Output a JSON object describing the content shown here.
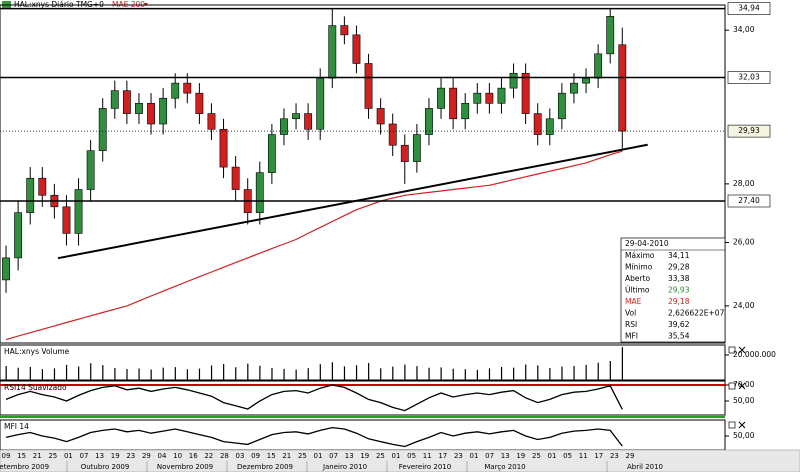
{
  "header": {
    "title": "HAL:xnys Diário TMG+0",
    "indicator": "MAE 200"
  },
  "chart_data": [
    {
      "type": "candlestick",
      "open": [
        24.8,
        25.5,
        27.0,
        28.2,
        27.6,
        27.2,
        26.3,
        27.8,
        29.2,
        30.8,
        31.5,
        30.6,
        31.0,
        30.2,
        31.2,
        31.8,
        31.4,
        30.6,
        30.0,
        28.6,
        27.8,
        27.0,
        28.4,
        29.8,
        30.4,
        30.6,
        30.0,
        32.0,
        34.2,
        33.8,
        32.6,
        30.8,
        30.2,
        29.4,
        28.8,
        29.8,
        30.8,
        31.6,
        30.4,
        31.0,
        31.4,
        31.0,
        31.6,
        32.2,
        30.6,
        29.8,
        30.4,
        31.4,
        31.8,
        32.0,
        33.0,
        33.38
      ],
      "high": [
        25.9,
        27.4,
        28.6,
        28.6,
        28.0,
        27.6,
        28.2,
        29.6,
        31.2,
        31.9,
        31.9,
        31.4,
        31.4,
        31.6,
        32.2,
        32.2,
        31.8,
        31.0,
        30.4,
        29.0,
        28.2,
        28.8,
        30.2,
        30.8,
        31.0,
        31.0,
        32.4,
        34.94,
        34.6,
        34.2,
        33.0,
        31.2,
        30.6,
        29.8,
        30.2,
        31.2,
        32.0,
        32.0,
        31.4,
        31.8,
        31.8,
        32.0,
        32.6,
        32.6,
        31.0,
        30.8,
        31.8,
        32.2,
        32.4,
        33.4,
        34.94,
        34.11
      ],
      "low": [
        24.4,
        25.1,
        26.6,
        27.2,
        26.8,
        25.9,
        25.9,
        27.4,
        28.8,
        30.4,
        30.2,
        30.2,
        29.8,
        29.8,
        30.8,
        31.0,
        30.2,
        29.6,
        28.2,
        27.4,
        26.6,
        26.6,
        28.0,
        29.4,
        30.0,
        29.6,
        29.6,
        31.6,
        33.4,
        32.2,
        30.4,
        29.8,
        29.0,
        28.0,
        28.4,
        29.4,
        30.4,
        30.0,
        30.0,
        30.6,
        30.6,
        30.6,
        31.2,
        30.2,
        29.4,
        29.4,
        30.0,
        31.0,
        31.4,
        31.6,
        32.6,
        29.28
      ],
      "close": [
        25.5,
        27.0,
        28.2,
        27.6,
        27.2,
        26.3,
        27.8,
        29.2,
        30.8,
        31.5,
        30.6,
        31.0,
        30.2,
        31.2,
        31.8,
        31.4,
        30.6,
        30.0,
        28.6,
        27.8,
        27.0,
        28.4,
        29.8,
        30.4,
        30.6,
        30.0,
        32.0,
        34.2,
        33.8,
        32.6,
        30.8,
        30.2,
        29.4,
        28.8,
        29.8,
        30.8,
        31.6,
        30.4,
        31.0,
        31.4,
        31.0,
        31.6,
        32.2,
        30.6,
        29.8,
        30.4,
        31.4,
        31.8,
        32.0,
        33.0,
        34.6,
        29.93
      ],
      "up_color": "#2f8f3f",
      "down_color": "#d02020",
      "overlay": {
        "name": "MAE 200",
        "color": "#cc2222",
        "values": [
          23.0,
          23.1,
          23.2,
          23.3,
          23.4,
          23.5,
          23.6,
          23.7,
          23.8,
          23.9,
          24.0,
          24.15,
          24.3,
          24.45,
          24.6,
          24.75,
          24.9,
          25.05,
          25.2,
          25.35,
          25.5,
          25.65,
          25.8,
          25.95,
          26.1,
          26.3,
          26.5,
          26.7,
          26.9,
          27.1,
          27.25,
          27.4,
          27.5,
          27.6,
          27.65,
          27.7,
          27.75,
          27.8,
          27.85,
          27.9,
          27.95,
          28.05,
          28.15,
          28.25,
          28.35,
          28.45,
          28.55,
          28.65,
          28.75,
          28.9,
          29.05,
          29.18
        ]
      },
      "trendline": {
        "x": [
          4.3,
          53.1
        ],
        "y": [
          25.49,
          29.42
        ],
        "color": "#000000"
      },
      "levels": [
        {
          "value": 34.94,
          "label": "34,94"
        },
        {
          "value": 32.03,
          "label": "32,03"
        },
        {
          "value": 29.93,
          "label": "29,93",
          "style": "dotted"
        },
        {
          "value": 27.4,
          "label": "27,40"
        }
      ],
      "xlim": [
        -0.5,
        59.5
      ],
      "ylim": [
        22.9,
        35.1
      ],
      "log_scale": true,
      "yticks": [
        {
          "value": 24,
          "label": "24,00"
        },
        {
          "value": 26,
          "label": "26,00"
        },
        {
          "value": 28,
          "label": "28,00"
        },
        {
          "value": 34,
          "label": "34,00"
        }
      ]
    },
    {
      "type": "bar",
      "title": "HAL:xnys Volume",
      "color": "#000000",
      "values": [
        11200000,
        9800000,
        10500000,
        8700000,
        9300000,
        12100000,
        10800000,
        13400000,
        11900000,
        9600000,
        8800000,
        9200000,
        8400000,
        9900000,
        10300000,
        8600000,
        9100000,
        11600000,
        12800000,
        10200000,
        13100000,
        11400000,
        9700000,
        8900000,
        8300000,
        9500000,
        12600000,
        14200000,
        10900000,
        11800000,
        13600000,
        9400000,
        10700000,
        12300000,
        11100000,
        9800000,
        10100000,
        9000000,
        8600000,
        8100000,
        9300000,
        10400000,
        9900000,
        12400000,
        11700000,
        9600000,
        10800000,
        11300000,
        12100000,
        13800000,
        15200000,
        26266220
      ],
      "ylim": [
        0,
        26400000
      ],
      "yticks": [
        {
          "value": 20000000,
          "label": "20.000.000"
        }
      ]
    },
    {
      "type": "line",
      "title": "RSI14 Suavizado",
      "color": "#000000",
      "values": [
        52,
        58,
        62,
        58,
        55,
        50,
        57,
        63,
        67,
        69,
        64,
        66,
        62,
        65,
        67,
        64,
        60,
        56,
        48,
        44,
        40,
        50,
        58,
        62,
        63,
        60,
        66,
        70,
        67,
        60,
        52,
        48,
        42,
        38,
        46,
        54,
        60,
        55,
        58,
        60,
        58,
        61,
        63,
        54,
        48,
        52,
        58,
        61,
        62,
        65,
        69,
        39.62
      ],
      "level_line": {
        "value": 70,
        "color": "#cc0000"
      },
      "ylim": [
        32.5,
        72.5
      ],
      "yticks": [
        {
          "value": 70,
          "label": "70,00"
        },
        {
          "value": 50,
          "label": "50,00"
        }
      ]
    },
    {
      "type": "line",
      "title": "MFI 14",
      "color": "#000000",
      "values": [
        48,
        52,
        55,
        50,
        47,
        42,
        48,
        55,
        58,
        60,
        56,
        58,
        54,
        57,
        60,
        56,
        52,
        48,
        42,
        40,
        38,
        45,
        52,
        55,
        56,
        53,
        58,
        62,
        60,
        54,
        46,
        42,
        38,
        35,
        42,
        48,
        55,
        50,
        54,
        56,
        53,
        56,
        58,
        50,
        45,
        48,
        54,
        57,
        58,
        60,
        58,
        35.54
      ],
      "ylim": [
        30,
        70
      ],
      "yticks": [
        {
          "value": 50,
          "label": "50,00"
        }
      ]
    }
  ],
  "x_axis": {
    "days": [
      "09",
      "15",
      "21",
      "25",
      "01",
      "07",
      "13",
      "19",
      "23",
      "29",
      "04",
      "10",
      "16",
      "22",
      "28",
      "03",
      "09",
      "15",
      "21",
      "25",
      "01",
      "07",
      "13",
      "19",
      "25",
      "01",
      "05",
      "11",
      "17",
      "23",
      "01",
      "07",
      "13",
      "19",
      "25",
      "01",
      "05",
      "11",
      "17",
      "23",
      "29"
    ],
    "months": [
      "Setembro 2009",
      "Outubro 2009",
      "Novembro 2009",
      "Dezembro 2009",
      "Janeiro 2010",
      "Fevereiro 2010",
      "Março 2010",
      "Abril 2010"
    ]
  },
  "info_box": {
    "date": "29-04-2010",
    "rows": [
      [
        "Máximo",
        "34,11"
      ],
      [
        "Mínimo",
        "29,28"
      ],
      [
        "Aberto",
        "33,38"
      ],
      [
        "Último",
        "29,93"
      ],
      [
        "MAE",
        "29,18"
      ],
      [
        "Vol",
        "2,626622E+07"
      ],
      [
        "RSI",
        "39,62"
      ],
      [
        "MFI",
        "35,54"
      ]
    ]
  }
}
